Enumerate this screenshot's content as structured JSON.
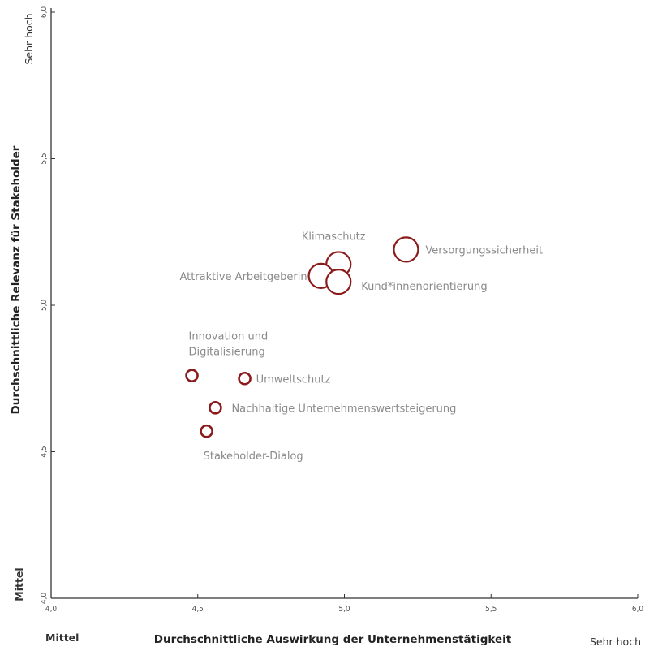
{
  "chart_data": {
    "type": "scatter",
    "xlabel": "Durchschnittliche Auswirkung der Unternehmenstätigkeit",
    "ylabel": "Durchschnittliche Relevanz für Stakeholder",
    "xlim": [
      4.0,
      6.0
    ],
    "ylim": [
      4.0,
      6.0
    ],
    "x_ticks": [
      "4,0",
      "4,5",
      "5,0",
      "5,5",
      "6,0"
    ],
    "y_ticks": [
      "4,0",
      "4,5",
      "5,0",
      "5,5",
      "6,0"
    ],
    "x_low_label": "Mittel",
    "x_high_label": "Sehr hoch",
    "y_low_label": "Mittel",
    "y_high_label": "Sehr hoch",
    "grid": false,
    "marker_color": "#8b1a1a",
    "points": [
      {
        "label": "Versorgungssicherheit",
        "x": 5.21,
        "y": 5.19,
        "size": "large"
      },
      {
        "label": "Klimaschutz",
        "x": 4.98,
        "y": 5.14,
        "size": "large"
      },
      {
        "label": "Attraktive Arbeitgeberin",
        "x": 4.92,
        "y": 5.1,
        "size": "large"
      },
      {
        "label": "Kund*innenorientierung",
        "x": 4.98,
        "y": 5.08,
        "size": "large"
      },
      {
        "label": "Innovation und Digitalisierung",
        "x": 4.48,
        "y": 4.76,
        "size": "small"
      },
      {
        "label": "Umweltschutz",
        "x": 4.66,
        "y": 4.75,
        "size": "small"
      },
      {
        "label": "Nachhaltige Unternehmenswertsteigerung",
        "x": 4.56,
        "y": 4.65,
        "size": "small"
      },
      {
        "label": "Stakeholder-Dialog",
        "x": 4.53,
        "y": 4.57,
        "size": "small"
      }
    ]
  }
}
